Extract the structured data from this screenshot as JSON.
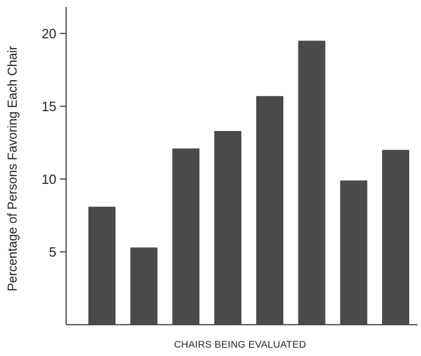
{
  "chart_data": {
    "type": "bar",
    "title": "",
    "xlabel": "CHAIRS BEING EVALUATED",
    "ylabel": "Percentage of Persons Favoring Each Chair",
    "categories": [
      "",
      "",
      "",
      "",
      "",
      "",
      "",
      ""
    ],
    "values": [
      8.1,
      5.3,
      12.1,
      13.3,
      15.7,
      19.5,
      9.9,
      12.0
    ],
    "ylim": [
      0,
      22
    ],
    "yticks": [
      5,
      10,
      15,
      20
    ],
    "grid": false,
    "colors": {
      "bar": "#4a4a4a",
      "axis": "#333333"
    }
  }
}
